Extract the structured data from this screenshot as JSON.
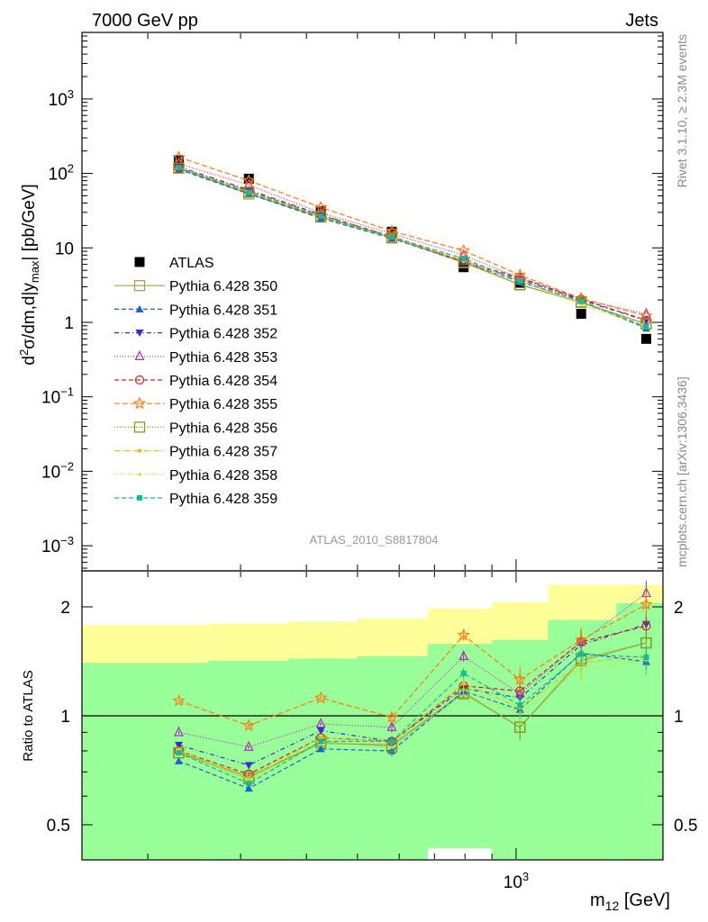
{
  "header": {
    "left_title": "7000 GeV pp",
    "right_title": "Jets"
  },
  "side_labels": {
    "rivet": "Rivet 3.1.10, ≥ 2.3M events",
    "mcplots": "mcplots.cern.ch [arXiv:1306.3436]"
  },
  "analysis_tag": "ATLAS_2010_S8817804",
  "chart_data": [
    {
      "type": "scatter",
      "name": "main-panel",
      "ylabel": "d²σ/dm,d|y_max| [pb/GeV]",
      "xlabel": "",
      "xscale": "log",
      "yscale": "log",
      "xlim": [
        150,
        1900
      ],
      "ylim": [
        0.0005,
        8000
      ],
      "ytick_labels": [
        "10^-3",
        "10^-2",
        "10^-1",
        "1",
        "10",
        "10^2",
        "10^3"
      ],
      "bin_centers_GeV": [
        229,
        311,
        426,
        581,
        795,
        1017,
        1329,
        1766
      ],
      "legend_position": "left-middle",
      "series": [
        {
          "name": "ATLAS",
          "color": "#000000",
          "marker": "square",
          "values": [
            150,
            85,
            31,
            16.5,
            5.5,
            3.4,
            1.3,
            0.6
          ]
        },
        {
          "name": "Pythia 6.428 350",
          "color": "#a3a04b",
          "marker": "open-square",
          "dash": "solid",
          "values": [
            118,
            53,
            26,
            13.8,
            6.4,
            3.2,
            1.85,
            0.95
          ]
        },
        {
          "name": "Pythia 6.428 351",
          "color": "#1f5fd6",
          "marker": "triangle-up",
          "dash": "5,3",
          "values": [
            113,
            53,
            25,
            13.4,
            6.4,
            3.5,
            1.95,
            0.83
          ]
        },
        {
          "name": "Pythia 6.428 352",
          "color": "#3a2ed1",
          "marker": "triangle-down",
          "dash": "5,3,1,3",
          "values": [
            123,
            60,
            28,
            14.0,
            6.5,
            3.8,
            2.0,
            1.05
          ]
        },
        {
          "name": "Pythia 6.428 353",
          "color": "#b02bbf",
          "marker": "open-triangle-up",
          "dash": "1,2",
          "values": [
            135,
            70,
            29.5,
            15.5,
            8.0,
            3.9,
            2.05,
            1.3
          ]
        },
        {
          "name": "Pythia 6.428 354",
          "color": "#d72020",
          "marker": "open-circle",
          "dash": "5,3",
          "values": [
            120,
            58,
            27.5,
            14.3,
            6.6,
            4.0,
            2.05,
            1.07
          ]
        },
        {
          "name": "Pythia 6.428 355",
          "color": "#ff7a10",
          "marker": "open-star",
          "dash": "6,3",
          "values": [
            165,
            80,
            35,
            16.8,
            9.2,
            4.3,
            2.1,
            1.22
          ]
        },
        {
          "name": "Pythia 6.428 356",
          "color": "#7f9a19",
          "marker": "open-square",
          "dash": "1,2",
          "values": [
            118,
            56,
            26,
            13.6,
            6.3,
            3.2,
            1.88,
            0.95
          ]
        },
        {
          "name": "Pythia 6.428 357",
          "color": "#e0c419",
          "marker": "dot",
          "dash": "6,2,1,2",
          "values": [
            120,
            57,
            27,
            14.0,
            6.8,
            3.6,
            1.82,
            0.88
          ]
        },
        {
          "name": "Pythia 6.428 358",
          "color": "#c8d81c",
          "marker": "dot-small",
          "dash": "1,2",
          "values": [
            122,
            56,
            26,
            13.8,
            6.5,
            3.5,
            1.75,
            0.85
          ]
        },
        {
          "name": "Pythia 6.428 359",
          "color": "#17b997",
          "marker": "filled-square",
          "dash": "5,3",
          "values": [
            119,
            55,
            26.5,
            14.0,
            7.2,
            3.6,
            1.92,
            0.87
          ]
        }
      ]
    },
    {
      "type": "scatter",
      "name": "ratio-panel",
      "ylabel": "Ratio to ATLAS",
      "xlabel": "m₁₂ [GeV]",
      "xscale": "log",
      "xlim": [
        150,
        1900
      ],
      "ylim": [
        0.35,
        2.3
      ],
      "ytick_labels": [
        "0.5",
        "1",
        "2"
      ],
      "xtick_labels": [
        "10^3"
      ],
      "bin_edges_GeV": [
        150,
        260,
        370,
        500,
        680,
        900,
        1150,
        1550,
        1900
      ],
      "band_yellow": {
        "low": [
          0.66,
          0.66,
          0.64,
          0.6,
          0.47,
          0.38,
          0.3,
          0.3
        ],
        "high": [
          1.78,
          1.8,
          1.82,
          1.86,
          1.98,
          2.06,
          2.3,
          2.3
        ]
      },
      "band_green": {
        "low": [
          0.3,
          0.3,
          0.3,
          0.3,
          0.43,
          0.38,
          0.3,
          0.3
        ],
        "high": [
          1.4,
          1.42,
          1.44,
          1.46,
          1.58,
          1.62,
          1.84,
          2.05
        ]
      },
      "series": [
        {
          "name": "Pythia 6.428 350",
          "values": [
            0.79,
            0.68,
            0.84,
            0.83,
            1.16,
            0.93,
            1.42,
            1.59
          ]
        },
        {
          "name": "Pythia 6.428 351",
          "values": [
            0.75,
            0.63,
            0.81,
            0.8,
            1.17,
            1.04,
            1.49,
            1.41
          ]
        },
        {
          "name": "Pythia 6.428 352",
          "values": [
            0.83,
            0.73,
            0.91,
            0.85,
            1.19,
            1.12,
            1.57,
            1.79
          ]
        },
        {
          "name": "Pythia 6.428 353",
          "values": [
            0.9,
            0.82,
            0.95,
            0.93,
            1.46,
            1.15,
            1.6,
            2.18
          ]
        },
        {
          "name": "Pythia 6.428 354",
          "values": [
            0.8,
            0.69,
            0.87,
            0.85,
            1.21,
            1.17,
            1.6,
            1.77
          ]
        },
        {
          "name": "Pythia 6.428 355",
          "values": [
            1.1,
            0.94,
            1.12,
            0.99,
            1.67,
            1.26,
            1.62,
            2.03
          ]
        },
        {
          "name": "Pythia 6.428 356",
          "values": [
            0.79,
            0.67,
            0.85,
            0.82,
            1.15,
            0.93,
            1.44,
            1.59
          ]
        },
        {
          "name": "Pythia 6.428 357",
          "values": [
            0.8,
            0.67,
            0.87,
            0.85,
            1.23,
            1.05,
            1.4,
            1.47
          ]
        },
        {
          "name": "Pythia 6.428 358",
          "values": [
            0.81,
            0.66,
            0.84,
            0.84,
            1.18,
            1.02,
            1.35,
            1.42
          ]
        },
        {
          "name": "Pythia 6.428 359",
          "values": [
            0.79,
            0.65,
            0.85,
            0.85,
            1.31,
            1.07,
            1.48,
            1.45
          ]
        }
      ]
    }
  ]
}
